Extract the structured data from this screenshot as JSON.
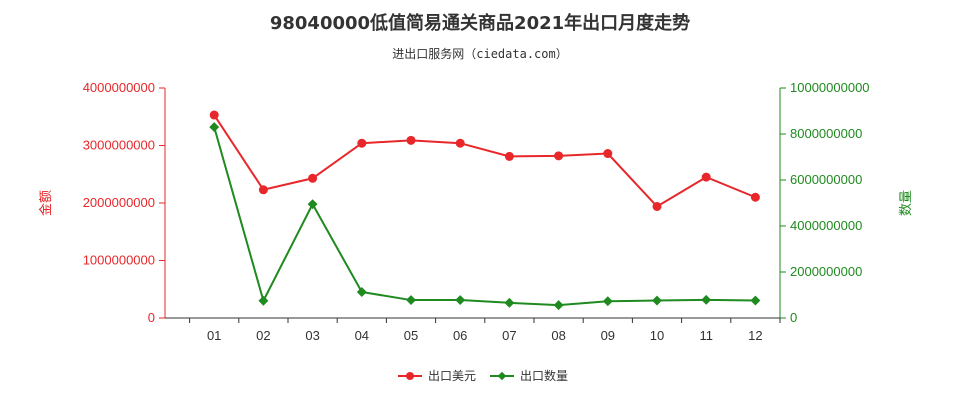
{
  "chart_data": {
    "type": "line",
    "title": "98040000低值简易通关商品2021年出口月度走势",
    "subtitle": "进出口服务网（ciedata.com）",
    "categories": [
      "01",
      "02",
      "03",
      "04",
      "05",
      "06",
      "07",
      "08",
      "09",
      "10",
      "11",
      "12"
    ],
    "y_left": {
      "label": "金额",
      "range": [
        0,
        4000000000
      ],
      "ticks": [
        0,
        1000000000,
        2000000000,
        3000000000,
        4000000000
      ],
      "tick_labels": [
        "0",
        "1000000000",
        "2000000000",
        "3000000000",
        "4000000000"
      ],
      "color": "#e8272a"
    },
    "y_right": {
      "label": "数量",
      "range": [
        0,
        10000000000
      ],
      "ticks": [
        0,
        2000000000,
        4000000000,
        6000000000,
        8000000000,
        10000000000
      ],
      "tick_labels": [
        "0",
        "2000000000",
        "4000000000",
        "6000000000",
        "8000000000",
        "10000000000"
      ],
      "color": "#1f8a1f"
    },
    "series": [
      {
        "name": "出口美元",
        "axis": "left",
        "color": "#e8272a",
        "values": [
          3530000000,
          2230000000,
          2430000000,
          3040000000,
          3090000000,
          3040000000,
          2810000000,
          2820000000,
          2860000000,
          1940000000,
          2450000000,
          2100000000
        ]
      },
      {
        "name": "出口数量",
        "axis": "right",
        "color": "#1f8a1f",
        "values": [
          8300000000,
          750000000,
          4950000000,
          1130000000,
          780000000,
          780000000,
          660000000,
          560000000,
          730000000,
          760000000,
          790000000,
          760000000
        ]
      }
    ],
    "grid": false,
    "legend_position": "bottom-center"
  }
}
